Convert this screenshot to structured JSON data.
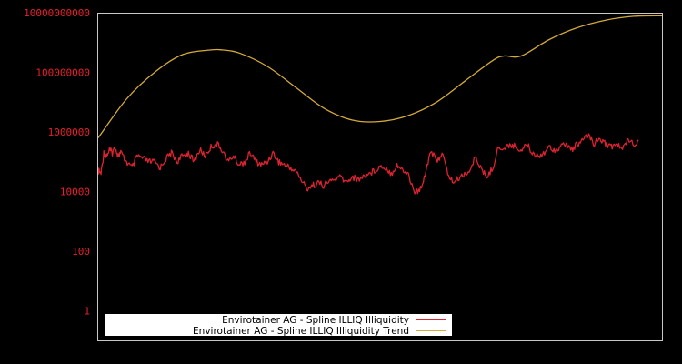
{
  "chart_data": {
    "type": "line",
    "title": "",
    "xlabel": "",
    "ylabel": "",
    "yscale": "log",
    "ylim": [
      0.1,
      10000000000
    ],
    "y_ticks": [
      "10000000000",
      "100000000",
      "1000000",
      "10000",
      "100",
      "1"
    ],
    "grid": false,
    "legend_position": "bottom-left inside",
    "colors": {
      "frame": "#c8c8c8",
      "tick_text": "#e8202a",
      "background": "#000000"
    },
    "series": [
      {
        "name": "Envirotainer AG - Spline ILLIQ Illiquidity",
        "color": "#dd2230",
        "x_pct": [
          0,
          0.5,
          1,
          1.5,
          2,
          2.5,
          3,
          3.5,
          4,
          5,
          6,
          7,
          8,
          9,
          10,
          11,
          12,
          13,
          14,
          15,
          16,
          17,
          18,
          19,
          20,
          21,
          22,
          23,
          24,
          25,
          26,
          27,
          28,
          29,
          30,
          31,
          32,
          33,
          34,
          35,
          36,
          37,
          38,
          39,
          40,
          41,
          42,
          43,
          44,
          45,
          46,
          47,
          48,
          49,
          50,
          51,
          52,
          53,
          54,
          55,
          56,
          57,
          58,
          59,
          60,
          61,
          62,
          63,
          64,
          65,
          66,
          67,
          68,
          69,
          70,
          71,
          72,
          73,
          74,
          75,
          76,
          77,
          78,
          79,
          80,
          81,
          82,
          83,
          84,
          85,
          86,
          87,
          88,
          89,
          90,
          91,
          92,
          93,
          94,
          95,
          96,
          97,
          98,
          99,
          100
        ],
        "log10_values": [
          4.7,
          4.6,
          5.3,
          5.2,
          5.4,
          5.3,
          5.5,
          5.2,
          5.3,
          5.0,
          4.8,
          5.2,
          5.1,
          5.0,
          5.0,
          4.8,
          5.1,
          5.3,
          5.0,
          5.2,
          5.3,
          5.0,
          5.4,
          5.2,
          5.5,
          5.6,
          5.4,
          5.0,
          5.2,
          4.9,
          5.0,
          5.3,
          5.0,
          4.9,
          5.0,
          5.3,
          5.0,
          4.9,
          4.8,
          4.7,
          4.4,
          4.1,
          4.2,
          4.3,
          4.2,
          4.35,
          4.4,
          4.5,
          4.3,
          4.5,
          4.4,
          4.5,
          4.6,
          4.7,
          4.85,
          4.8,
          4.6,
          4.9,
          4.7,
          4.6,
          4.0,
          4.0,
          4.6,
          5.4,
          5.0,
          5.3,
          4.6,
          4.3,
          4.45,
          4.6,
          4.7,
          5.2,
          4.7,
          4.5,
          4.8,
          5.5,
          5.4,
          5.6,
          5.5,
          5.4,
          5.6,
          5.3,
          5.2,
          5.3,
          5.5,
          5.4,
          5.5,
          5.6,
          5.4,
          5.6,
          5.7,
          5.9,
          5.6,
          5.8,
          5.6,
          5.5,
          5.6,
          5.4,
          5.8,
          5.6,
          5.7
        ]
      },
      {
        "name": "Envirotainer AG - Spline ILLIQ Illiquidity Trend",
        "color": "#d4aa3a",
        "x_pct": [
          0,
          5,
          10,
          15,
          20,
          22,
          25,
          30,
          35,
          40,
          45,
          50,
          55,
          60,
          65,
          70,
          72,
          75,
          80,
          85,
          90,
          95,
          100
        ],
        "log10_values": [
          5.8,
          7.1,
          8.0,
          8.6,
          8.75,
          8.75,
          8.65,
          8.2,
          7.5,
          6.8,
          6.4,
          6.35,
          6.55,
          7.0,
          7.7,
          8.4,
          8.55,
          8.55,
          9.1,
          9.5,
          9.75,
          9.88,
          9.9
        ]
      }
    ]
  },
  "legend": {
    "items": [
      {
        "label": "Envirotainer AG - Spline ILLIQ Illiquidity",
        "color": "#dd2230"
      },
      {
        "label": "Envirotainer AG - Spline ILLIQ Illiquidity Trend",
        "color": "#d4aa3a"
      }
    ]
  }
}
